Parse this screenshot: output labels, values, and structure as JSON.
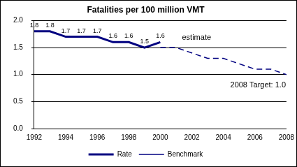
{
  "chart_data": {
    "type": "line",
    "title": "Fatalities per 100 million VMT",
    "series": [
      {
        "name": "Rate",
        "color": "#000080",
        "line_style": "solid",
        "data_labels": true,
        "x": [
          1992,
          1993,
          1994,
          1995,
          1996,
          1997,
          1998,
          1999,
          2000
        ],
        "values": [
          1.8,
          1.8,
          1.7,
          1.7,
          1.7,
          1.6,
          1.6,
          1.5,
          1.6
        ]
      },
      {
        "name": "Benchmark",
        "color": "#000080",
        "line_style": "dashed",
        "x": [
          2000,
          2001,
          2002,
          2003,
          2004,
          2005,
          2006,
          2007,
          2008
        ],
        "values": [
          1.5,
          1.5,
          1.4,
          1.3,
          1.3,
          1.2,
          1.1,
          1.1,
          1.0
        ]
      }
    ],
    "xlim": [
      1992,
      2008
    ],
    "xticks": [
      1992,
      1994,
      1996,
      1998,
      2000,
      2002,
      2004,
      2006,
      2008
    ],
    "ylim": [
      0,
      2
    ],
    "yticks": [
      {
        "value": 0,
        "label": "0.0"
      },
      {
        "value": 0.5,
        "label": "0.5"
      },
      {
        "value": 1,
        "label": "1.0"
      },
      {
        "value": 1.5,
        "label": "1.5"
      },
      {
        "value": 2,
        "label": "2.0"
      }
    ],
    "grid": "y",
    "legend": "bottom",
    "annotations": [
      {
        "text": "estimate",
        "x": 2002.3,
        "y": 1.68
      },
      {
        "text": "2008 Target: 1.0",
        "x": 2006.2,
        "y": 0.8
      }
    ]
  }
}
